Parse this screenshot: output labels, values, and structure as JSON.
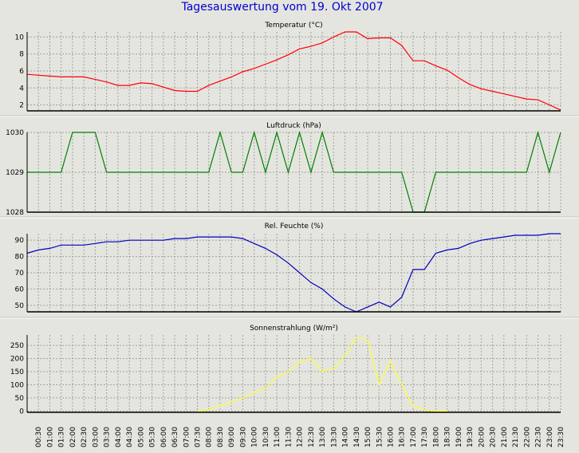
{
  "title": "Tagesauswertung vom 19. Okt 2007",
  "colors": {
    "background": "#e5e5e0",
    "title": "#0000cc",
    "grid": "#a0a0a0",
    "frame": "#000000",
    "temperature": "#ff0000",
    "pressure": "#008000",
    "humidity": "#0000c0",
    "radiation": "#ffff33"
  },
  "x_tick_labels": [
    "00:30",
    "01:00",
    "01:30",
    "02:00",
    "02:30",
    "03:00",
    "03:30",
    "04:00",
    "04:30",
    "05:00",
    "05:30",
    "06:00",
    "06:30",
    "07:00",
    "07:30",
    "08:00",
    "08:30",
    "09:00",
    "09:30",
    "10:00",
    "10:30",
    "11:00",
    "11:30",
    "12:00",
    "12:30",
    "13:00",
    "13:30",
    "14:00",
    "14:30",
    "15:00",
    "15:30",
    "16:00",
    "16:30",
    "17:00",
    "17:30",
    "18:00",
    "18:30",
    "19:00",
    "19:30",
    "20:00",
    "20:30",
    "21:00",
    "21:30",
    "22:00",
    "22:30",
    "23:00",
    "23:30"
  ],
  "chart_data": [
    {
      "type": "line",
      "title": "Temperatur (°C)",
      "ylim": [
        1.3,
        10.6
      ],
      "yticks": [
        2,
        4,
        6,
        8,
        10
      ],
      "grid": true,
      "color": "#ff0000",
      "values": [
        5.6,
        5.5,
        5.4,
        5.3,
        5.3,
        5.3,
        5.0,
        4.7,
        4.3,
        4.3,
        4.6,
        4.5,
        4.1,
        3.7,
        3.6,
        3.6,
        4.3,
        4.8,
        5.3,
        5.9,
        6.3,
        6.8,
        7.3,
        7.9,
        8.6,
        8.9,
        9.3,
        10.0,
        10.6,
        10.6,
        9.8,
        9.9,
        9.9,
        9.0,
        7.2,
        7.2,
        6.6,
        6.1,
        5.2,
        4.4,
        3.9,
        3.6,
        3.3,
        3.0,
        2.7,
        2.6,
        2.0,
        1.4
      ]
    },
    {
      "type": "line",
      "title": "Luftdruck (hPa)",
      "ylim": [
        1028,
        1030
      ],
      "yticks": [
        1028,
        1029,
        1030
      ],
      "grid": true,
      "color": "#008000",
      "values": [
        1029,
        1029,
        1029,
        1029,
        1030,
        1030,
        1030,
        1029,
        1029,
        1029,
        1029,
        1029,
        1029,
        1029,
        1029,
        1029,
        1029,
        1030,
        1029,
        1029,
        1030,
        1029,
        1030,
        1029,
        1030,
        1029,
        1030,
        1029,
        1029,
        1029,
        1029,
        1029,
        1029,
        1029,
        1028,
        1028,
        1029,
        1029,
        1029,
        1029,
        1029,
        1029,
        1029,
        1029,
        1029,
        1030,
        1029,
        1030
      ]
    },
    {
      "type": "line",
      "title": "Rel. Feuchte (%)",
      "ylim": [
        46,
        94
      ],
      "yticks": [
        50,
        60,
        70,
        80,
        90
      ],
      "grid": true,
      "color": "#0000c0",
      "values": [
        82,
        84,
        85,
        87,
        87,
        87,
        88,
        89,
        89,
        90,
        90,
        90,
        90,
        91,
        91,
        92,
        92,
        92,
        92,
        91,
        88,
        85,
        81,
        76,
        70,
        64,
        60,
        54,
        49,
        46,
        49,
        52,
        49,
        55,
        72,
        72,
        82,
        84,
        85,
        88,
        90,
        91,
        92,
        93,
        93,
        93,
        94,
        94
      ]
    },
    {
      "type": "line",
      "title": "Sonnenstrahlung (W/m²)",
      "ylim": [
        -5,
        290
      ],
      "yticks": [
        0,
        50,
        100,
        150,
        200,
        250
      ],
      "grid": true,
      "color": "#ffff33",
      "values": [
        null,
        null,
        null,
        null,
        null,
        null,
        null,
        null,
        null,
        null,
        null,
        null,
        null,
        null,
        null,
        0,
        5,
        20,
        35,
        50,
        70,
        85,
        130,
        150,
        190,
        200,
        150,
        160,
        210,
        280,
        270,
        100,
        190,
        100,
        20,
        5,
        0,
        0,
        null,
        null,
        null,
        null,
        null,
        null,
        null,
        null,
        null,
        null
      ]
    }
  ]
}
